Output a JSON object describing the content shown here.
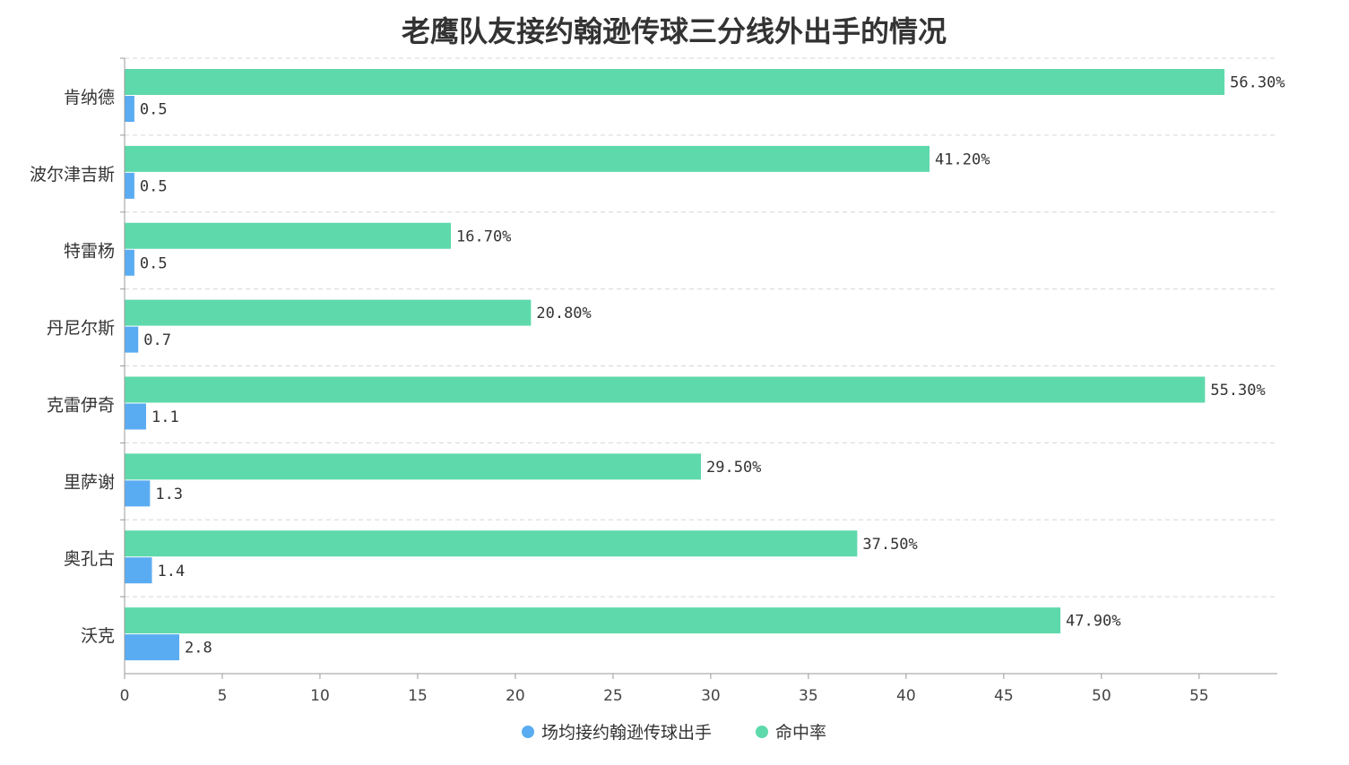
{
  "chart_data": {
    "type": "bar",
    "orientation": "horizontal",
    "title": "老鹰队友接约翰逊传球三分线外出手的情况",
    "categories": [
      "肯纳德",
      "波尔津吉斯",
      "特雷杨",
      "丹尼尔斯",
      "克雷伊奇",
      "里萨谢",
      "奥孔古",
      "沃克"
    ],
    "series": [
      {
        "name": "命中率",
        "color": "#5ed9ab",
        "values": [
          56.3,
          41.2,
          16.7,
          20.8,
          55.3,
          29.5,
          37.5,
          47.9
        ],
        "labels": [
          "56.30%",
          "41.20%",
          "16.70%",
          "20.80%",
          "55.30%",
          "29.50%",
          "37.50%",
          "47.90%"
        ]
      },
      {
        "name": "场均接约翰逊传球出手",
        "color": "#5aacf2",
        "values": [
          0.5,
          0.5,
          0.5,
          0.7,
          1.1,
          1.3,
          1.4,
          2.8
        ],
        "labels": [
          "0.5",
          "0.5",
          "0.5",
          "0.7",
          "1.1",
          "1.3",
          "1.4",
          "2.8"
        ]
      }
    ],
    "xaxis": {
      "range": [
        0,
        59
      ],
      "ticks": [
        "0",
        "5",
        "10",
        "15",
        "20",
        "25",
        "30",
        "35",
        "40",
        "45",
        "50",
        "55"
      ]
    },
    "grid": "horizontal dashed",
    "legend": {
      "position": "bottom-center",
      "items": [
        {
          "label": "场均接约翰逊传球出手",
          "color": "#5aacf2"
        },
        {
          "label": "命中率",
          "color": "#5ed9ab"
        }
      ]
    }
  }
}
